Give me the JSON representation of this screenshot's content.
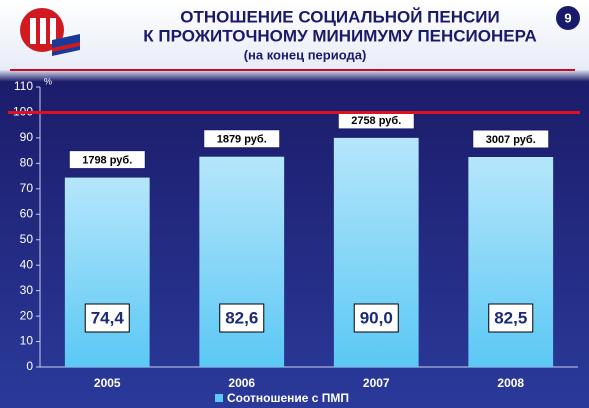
{
  "chart_data": {
    "type": "bar",
    "title": [
      "ОТНОШЕНИЕ СОЦИАЛЬНОЙ ПЕНСИИ",
      "К ПРОЖИТОЧНОМУ МИНИМУМУ ПЕНСИОНЕРА"
    ],
    "subtitle": "(на конец периода)",
    "slide_number": "9",
    "y_label": "%",
    "categories": [
      "2005",
      "2006",
      "2007",
      "2008"
    ],
    "series": [
      {
        "name": "Соотношение с ПМП",
        "color": "#5bc8f5",
        "values": [
          74.4,
          82.6,
          90.0,
          82.5
        ],
        "value_labels": [
          "74,4",
          "82,6",
          "90,0",
          "82,5"
        ]
      }
    ],
    "bar_notes": [
      "1798 руб.",
      "1879 руб.",
      "2758 руб.",
      "3007 руб."
    ],
    "reference_line": {
      "value": 100,
      "color": "#e01020"
    },
    "ylim": [
      0,
      110
    ],
    "yticks": [
      0,
      10,
      20,
      30,
      40,
      50,
      60,
      70,
      80,
      90,
      100,
      110
    ],
    "grid": false
  }
}
